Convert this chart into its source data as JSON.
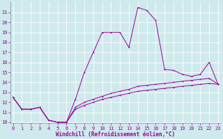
{
  "xlabel": "Windchill (Refroidissement éolien,°C)",
  "background_color": "#ceeaed",
  "grid_color": "#ffffff",
  "line_color": "#990099",
  "x_values": [
    0,
    1,
    2,
    3,
    4,
    5,
    6,
    7,
    8,
    9,
    10,
    11,
    12,
    13,
    14,
    15,
    16,
    17,
    18,
    19,
    20,
    21,
    22,
    23
  ],
  "y_main": [
    12.5,
    11.3,
    11.3,
    11.5,
    10.2,
    10.0,
    10.0,
    12.3,
    15.0,
    17.0,
    19.0,
    19.0,
    19.0,
    17.5,
    21.5,
    21.2,
    20.2,
    15.3,
    15.2,
    14.8,
    14.6,
    14.8,
    16.0,
    13.8
  ],
  "y_line2": [
    12.5,
    11.3,
    11.3,
    11.5,
    10.2,
    10.0,
    10.0,
    11.5,
    12.0,
    12.3,
    12.6,
    12.9,
    13.1,
    13.3,
    13.6,
    13.7,
    13.8,
    13.9,
    14.0,
    14.1,
    14.2,
    14.3,
    14.4,
    13.8
  ],
  "y_line3": [
    12.5,
    11.3,
    11.3,
    11.5,
    10.2,
    10.0,
    10.0,
    11.3,
    11.7,
    12.0,
    12.3,
    12.5,
    12.7,
    12.9,
    13.1,
    13.2,
    13.3,
    13.4,
    13.5,
    13.6,
    13.7,
    13.8,
    13.9,
    13.8
  ],
  "ylim_min": 10,
  "ylim_max": 22,
  "xlim_min": 0,
  "xlim_max": 23,
  "yticks": [
    10,
    11,
    12,
    13,
    14,
    15,
    16,
    17,
    18,
    19,
    20,
    21
  ],
  "xticks": [
    0,
    1,
    2,
    3,
    4,
    5,
    6,
    7,
    8,
    9,
    10,
    11,
    12,
    13,
    14,
    15,
    16,
    17,
    18,
    19,
    20,
    21,
    22,
    23
  ],
  "tick_fontsize": 5.0,
  "label_fontsize": 5.5,
  "linewidth": 0.7,
  "markersize": 2.0
}
